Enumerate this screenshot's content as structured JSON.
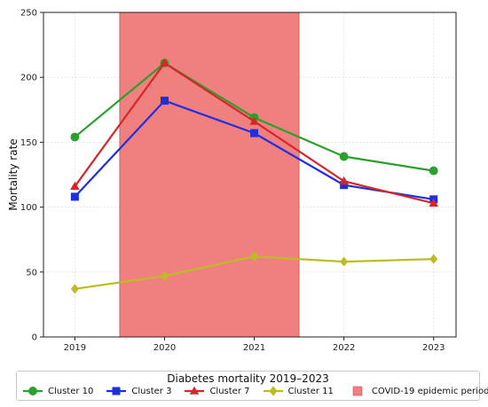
{
  "chart_data": {
    "type": "line",
    "title": "",
    "xlabel": "",
    "ylabel": "Mortality rate",
    "x": [
      2019,
      2020,
      2021,
      2022,
      2023
    ],
    "x_tick_labels": [
      "2019",
      "2020",
      "2021",
      "2022",
      "2023"
    ],
    "xlim": [
      2018.65,
      2023.25
    ],
    "ylim": [
      0,
      250
    ],
    "y_ticks": [
      0,
      50,
      100,
      150,
      200,
      250
    ],
    "grid": true,
    "shaded_region": {
      "label": "COVID-19 epidemic period",
      "x_start": 2019.5,
      "x_end": 2021.5,
      "color": "#f08080"
    },
    "series": [
      {
        "name": "Cluster 10",
        "color": "#2ca02c",
        "marker": "circle",
        "values": [
          154,
          211,
          169,
          139,
          128
        ]
      },
      {
        "name": "Cluster 3",
        "color": "#1f2fe0",
        "marker": "square",
        "values": [
          108,
          182,
          157,
          117,
          106
        ]
      },
      {
        "name": "Cluster 7",
        "color": "#d62728",
        "marker": "triangle",
        "values": [
          116,
          211,
          166,
          120,
          103
        ]
      },
      {
        "name": "Cluster 11",
        "color": "#bcbd22",
        "marker": "diamond",
        "values": [
          37,
          47,
          62,
          58,
          60
        ]
      }
    ],
    "legend": {
      "title": "Diabetes mortality 2019–2023",
      "placement": "bottom"
    }
  }
}
